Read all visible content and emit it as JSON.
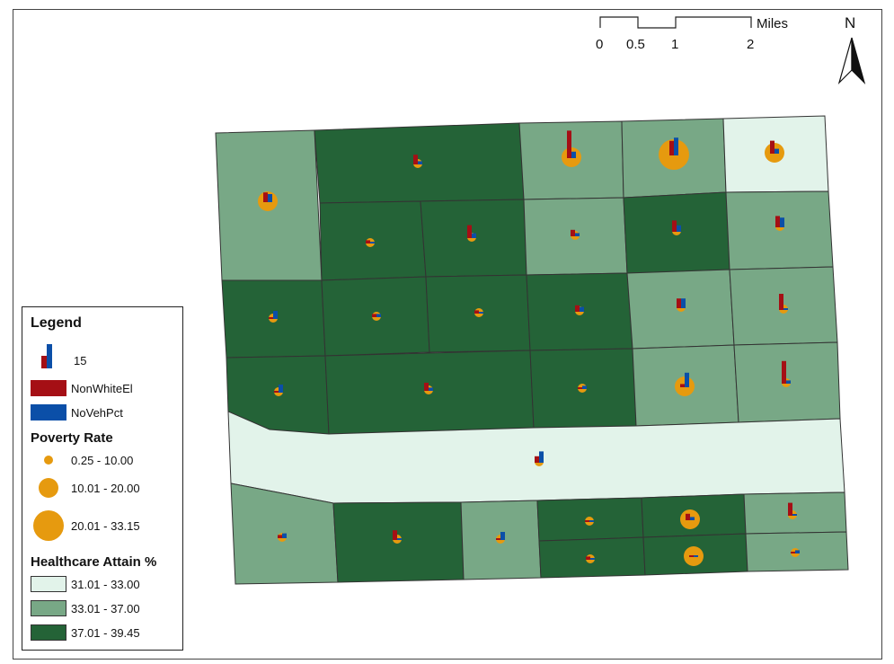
{
  "colors": {
    "light": "#E2F3EA",
    "medium": "#78A886",
    "dark": "#246337",
    "nonwhite": "#A50F15",
    "noveh": "#0B4FA8",
    "poverty": "#E69A0F",
    "outline": "#333333"
  },
  "legend": {
    "title": "Legend",
    "chart_scale_label": "15",
    "bar_items": [
      {
        "label": "NonWhiteEl",
        "color": "#A50F15"
      },
      {
        "label": "NoVehPct",
        "color": "#0B4FA8"
      }
    ],
    "poverty_title": "Poverty Rate",
    "poverty_classes": [
      {
        "label": "0.25 - 10.00",
        "size": "small"
      },
      {
        "label": "10.01 - 20.00",
        "size": "medium"
      },
      {
        "label": "20.01 - 33.15",
        "size": "large"
      }
    ],
    "healthcare_title": "Healthcare Attain %",
    "healthcare_classes": [
      {
        "label": "31.01 - 33.00",
        "color": "#E2F3EA"
      },
      {
        "label": "33.01 - 37.00",
        "color": "#78A886"
      },
      {
        "label": "37.01 - 39.45",
        "color": "#246337"
      }
    ]
  },
  "scale_bar": {
    "unit": "Miles",
    "ticks": [
      "0",
      "0.5",
      "1",
      "2"
    ]
  },
  "north_arrow": {
    "label": "N",
    "icon": "north-arrow-icon"
  },
  "tracts": [
    {
      "id": "r1c1",
      "fill": "medium",
      "nonwhite": 6,
      "noveh": 5,
      "poverty": "medium"
    },
    {
      "id": "r1c2",
      "fill": "dark",
      "nonwhite": 6,
      "noveh": 2,
      "poverty": "small"
    },
    {
      "id": "r1c3",
      "fill": "medium",
      "nonwhite": 17,
      "noveh": 4,
      "poverty": "medium"
    },
    {
      "id": "r1c4",
      "fill": "medium",
      "nonwhite": 9,
      "noveh": 11,
      "poverty": "large"
    },
    {
      "id": "r1c5",
      "fill": "light",
      "nonwhite": 8,
      "noveh": 3,
      "poverty": "medium"
    },
    {
      "id": "r2c2",
      "fill": "dark",
      "nonwhite": 2,
      "noveh": 1,
      "poverty": "small"
    },
    {
      "id": "r2c3",
      "fill": "dark",
      "nonwhite": 8,
      "noveh": 3,
      "poverty": "small"
    },
    {
      "id": "r2c4",
      "fill": "medium",
      "nonwhite": 4,
      "noveh": 2,
      "poverty": "small"
    },
    {
      "id": "r2c5",
      "fill": "dark",
      "nonwhite": 7,
      "noveh": 4,
      "poverty": "small"
    },
    {
      "id": "r2c6",
      "fill": "medium",
      "nonwhite": 7,
      "noveh": 6,
      "poverty": "small"
    },
    {
      "id": "r3c1",
      "fill": "dark",
      "nonwhite": 1,
      "noveh": 5,
      "poverty": "small"
    },
    {
      "id": "r3c2",
      "fill": "dark",
      "nonwhite": 2,
      "noveh": 2,
      "poverty": "small"
    },
    {
      "id": "r3c3",
      "fill": "dark",
      "nonwhite": 2,
      "noveh": 1,
      "poverty": "small"
    },
    {
      "id": "r3c4",
      "fill": "dark",
      "nonwhite": 4,
      "noveh": 3,
      "poverty": "small"
    },
    {
      "id": "r3c5",
      "fill": "medium",
      "nonwhite": 6,
      "noveh": 6,
      "poverty": "small"
    },
    {
      "id": "r3c6",
      "fill": "medium",
      "nonwhite": 10,
      "noveh": 1,
      "poverty": "small"
    },
    {
      "id": "r4c1",
      "fill": "dark",
      "nonwhite": 1,
      "noveh": 5,
      "poverty": "small"
    },
    {
      "id": "r4c2",
      "fill": "dark",
      "nonwhite": 5,
      "noveh": 2,
      "poverty": "small"
    },
    {
      "id": "r4c4",
      "fill": "dark",
      "nonwhite": 1,
      "noveh": 2,
      "poverty": "small"
    },
    {
      "id": "r4c5",
      "fill": "medium",
      "nonwhite": 2,
      "noveh": 9,
      "poverty": "medium"
    },
    {
      "id": "r4c6",
      "fill": "medium",
      "nonwhite": 14,
      "noveh": 2,
      "poverty": "small"
    },
    {
      "id": "band",
      "fill": "light",
      "nonwhite": 4,
      "noveh": 7,
      "poverty": "small"
    },
    {
      "id": "r6c1",
      "fill": "medium",
      "nonwhite": 2,
      "noveh": 3,
      "poverty": "small"
    },
    {
      "id": "r6c2",
      "fill": "dark",
      "nonwhite": 6,
      "noveh": 1,
      "poverty": "small"
    },
    {
      "id": "r6c3",
      "fill": "medium",
      "nonwhite": 1,
      "noveh": 5,
      "poverty": "small"
    },
    {
      "id": "r6c4",
      "fill": "dark",
      "nonwhite": 1,
      "noveh": 1,
      "poverty": "small"
    },
    {
      "id": "r6c5",
      "fill": "dark",
      "nonwhite": 4,
      "noveh": 2,
      "poverty": "medium"
    },
    {
      "id": "r6c6",
      "fill": "medium",
      "nonwhite": 8,
      "noveh": 1,
      "poverty": "small"
    },
    {
      "id": "r7c4",
      "fill": "dark",
      "nonwhite": 2,
      "noveh": 1,
      "poverty": "small"
    },
    {
      "id": "r7c5",
      "fill": "dark",
      "nonwhite": 1,
      "noveh": 1,
      "poverty": "medium"
    },
    {
      "id": "r7c6",
      "fill": "medium",
      "nonwhite": 1,
      "noveh": 2,
      "poverty": "small"
    }
  ]
}
